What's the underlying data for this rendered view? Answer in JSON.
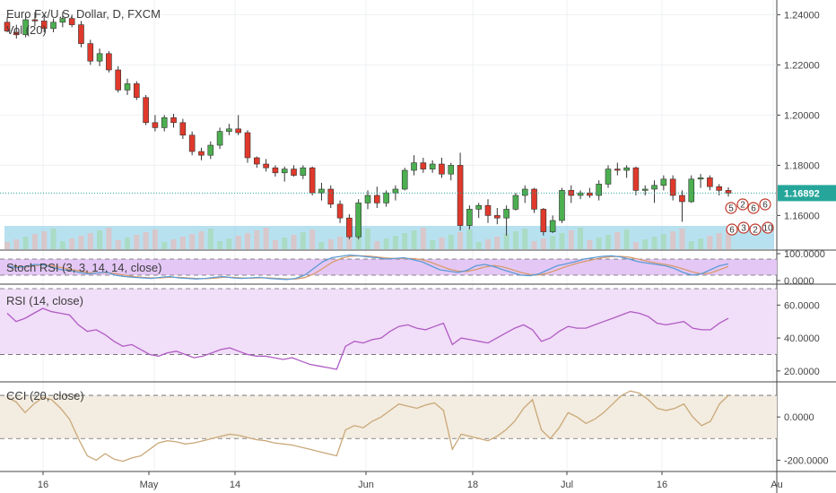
{
  "main": {
    "title": "Euro Fx/U.S. Dollar, D, FXCM",
    "volume_label": "Vol (20)",
    "last_price": "1.16892",
    "price_ticks": [
      "1.24000",
      "1.22000",
      "1.20000",
      "1.18000",
      "1.16000"
    ],
    "indicator_badges": [
      "5",
      "2",
      "6",
      "6",
      "6",
      "3",
      "2",
      "10"
    ]
  },
  "stoch": {
    "title": "Stoch RSI (3, 3, 14, 14, close)",
    "ticks": [
      "100.0000",
      "0.0000"
    ]
  },
  "rsi": {
    "title": "RSI (14, close)",
    "ticks": [
      "60.0000",
      "40.0000",
      "20.0000"
    ]
  },
  "cci": {
    "title": "CCI (20, close)",
    "ticks": [
      "0.0000",
      "-200.0000"
    ]
  },
  "time_axis": {
    "labels": [
      "16",
      "May",
      "14",
      "Jun",
      "18",
      "Jul",
      "16",
      "Au"
    ]
  },
  "colors": {
    "up": "#4caf50",
    "down": "#e0392b",
    "volume": "#7ec8e3",
    "price_line": "#26a69a",
    "stoch_bg": "#e4c7f5",
    "rsi_bg": "#f1def8",
    "rsi_line": "#b05bc4",
    "cci_bg": "#f3ece0",
    "cci_line": "#c9a878",
    "stoch_k": "#5b9bd5",
    "stoch_d": "#d99a6c"
  },
  "chart_data": [
    {
      "type": "candlestick",
      "title": "Euro Fx/U.S. Dollar, D, FXCM",
      "x_ticks": [
        "16",
        "May",
        "14",
        "Jun",
        "18",
        "Jul",
        "16",
        "Au"
      ],
      "ylim": [
        1.148,
        1.243
      ],
      "y_ticks": [
        1.24,
        1.22,
        1.2,
        1.18,
        1.16
      ],
      "last": 1.16892,
      "ohlc": [
        [
          1.237,
          1.239,
          1.233,
          1.2335
        ],
        [
          1.233,
          1.236,
          1.2305,
          1.232
        ],
        [
          1.232,
          1.2395,
          1.231,
          1.238
        ],
        [
          1.238,
          1.241,
          1.2355,
          1.2375
        ],
        [
          1.2375,
          1.24,
          1.233,
          1.2345
        ],
        [
          1.2345,
          1.2385,
          1.233,
          1.237
        ],
        [
          1.237,
          1.241,
          1.235,
          1.2385
        ],
        [
          1.2385,
          1.24,
          1.235,
          1.236
        ],
        [
          1.236,
          1.2375,
          1.227,
          1.2285
        ],
        [
          1.2285,
          1.23,
          1.22,
          1.2215
        ],
        [
          1.2215,
          1.2265,
          1.2195,
          1.2245
        ],
        [
          1.2245,
          1.2255,
          1.217,
          1.218
        ],
        [
          1.218,
          1.2195,
          1.209,
          1.21
        ],
        [
          1.21,
          1.2145,
          1.208,
          1.2125
        ],
        [
          1.2125,
          1.2135,
          1.206,
          1.207
        ],
        [
          1.207,
          1.208,
          1.196,
          1.197
        ],
        [
          1.197,
          1.2,
          1.1935,
          1.195
        ],
        [
          1.195,
          1.2,
          1.1935,
          1.199
        ],
        [
          1.199,
          1.2005,
          1.195,
          1.197
        ],
        [
          1.197,
          1.1985,
          1.1905,
          1.192
        ],
        [
          1.192,
          1.1935,
          1.184,
          1.1855
        ],
        [
          1.1855,
          1.187,
          1.182,
          1.184
        ],
        [
          1.184,
          1.1895,
          1.1825,
          1.188
        ],
        [
          1.188,
          1.195,
          1.1865,
          1.1935
        ],
        [
          1.1935,
          1.1965,
          1.192,
          1.1945
        ],
        [
          1.1945,
          1.2,
          1.192,
          1.193
        ],
        [
          1.193,
          1.194,
          1.181,
          1.183
        ],
        [
          1.183,
          1.1835,
          1.179,
          1.1805
        ],
        [
          1.1805,
          1.1825,
          1.1775,
          1.179
        ],
        [
          1.179,
          1.18,
          1.1755,
          1.177
        ],
        [
          1.177,
          1.1795,
          1.1735,
          1.1785
        ],
        [
          1.1785,
          1.18,
          1.1755,
          1.176
        ],
        [
          1.176,
          1.18,
          1.1745,
          1.179
        ],
        [
          1.179,
          1.1795,
          1.168,
          1.169
        ],
        [
          1.169,
          1.173,
          1.166,
          1.1705
        ],
        [
          1.1705,
          1.172,
          1.163,
          1.1645
        ],
        [
          1.1645,
          1.166,
          1.157,
          1.159
        ],
        [
          1.159,
          1.1605,
          1.1505,
          1.1515
        ],
        [
          1.1515,
          1.1665,
          1.1505,
          1.165
        ],
        [
          1.165,
          1.17,
          1.1625,
          1.168
        ],
        [
          1.168,
          1.1715,
          1.163,
          1.165
        ],
        [
          1.165,
          1.17,
          1.1635,
          1.169
        ],
        [
          1.169,
          1.172,
          1.166,
          1.1705
        ],
        [
          1.1705,
          1.179,
          1.17,
          1.178
        ],
        [
          1.178,
          1.184,
          1.176,
          1.181
        ],
        [
          1.181,
          1.183,
          1.177,
          1.1785
        ],
        [
          1.1785,
          1.182,
          1.177,
          1.1805
        ],
        [
          1.1805,
          1.183,
          1.175,
          1.1765
        ],
        [
          1.1765,
          1.181,
          1.174,
          1.18
        ],
        [
          1.18,
          1.185,
          1.154,
          1.156
        ],
        [
          1.156,
          1.164,
          1.1545,
          1.1625
        ],
        [
          1.1625,
          1.165,
          1.159,
          1.164
        ],
        [
          1.164,
          1.1665,
          1.157,
          1.16
        ],
        [
          1.16,
          1.163,
          1.1565,
          1.159
        ],
        [
          1.159,
          1.164,
          1.152,
          1.1625
        ],
        [
          1.1625,
          1.169,
          1.162,
          1.168
        ],
        [
          1.168,
          1.172,
          1.165,
          1.1705
        ],
        [
          1.1705,
          1.171,
          1.161,
          1.1625
        ],
        [
          1.1625,
          1.163,
          1.152,
          1.1535
        ],
        [
          1.1535,
          1.16,
          1.153,
          1.158
        ],
        [
          1.158,
          1.171,
          1.157,
          1.17
        ],
        [
          1.17,
          1.172,
          1.165,
          1.168
        ],
        [
          1.168,
          1.17,
          1.1665,
          1.169
        ],
        [
          1.169,
          1.171,
          1.167,
          1.168
        ],
        [
          1.168,
          1.174,
          1.166,
          1.1725
        ],
        [
          1.1725,
          1.18,
          1.171,
          1.1785
        ],
        [
          1.1785,
          1.181,
          1.176,
          1.178
        ],
        [
          1.178,
          1.18,
          1.175,
          1.179
        ],
        [
          1.179,
          1.1795,
          1.168,
          1.17
        ],
        [
          1.17,
          1.172,
          1.168,
          1.1705
        ],
        [
          1.1705,
          1.174,
          1.165,
          1.172
        ],
        [
          1.172,
          1.176,
          1.17,
          1.1745
        ],
        [
          1.1745,
          1.176,
          1.166,
          1.168
        ],
        [
          1.168,
          1.17,
          1.1575,
          1.1655
        ],
        [
          1.1655,
          1.176,
          1.165,
          1.1745
        ],
        [
          1.1745,
          1.1765,
          1.171,
          1.175
        ],
        [
          1.175,
          1.176,
          1.17,
          1.1715
        ],
        [
          1.1715,
          1.1725,
          1.168,
          1.17
        ],
        [
          1.17,
          1.1712,
          1.1675,
          1.1689
        ]
      ]
    },
    {
      "type": "line",
      "title": "Stoch RSI (3, 3, 14, 14, close)",
      "ylim": [
        -10,
        110
      ],
      "y_ticks": [
        100,
        0
      ],
      "bands": [
        80,
        20
      ],
      "series": [
        {
          "values": [
            55,
            48,
            52,
            60,
            58,
            50,
            40,
            38,
            30,
            25,
            28,
            32,
            20,
            15,
            12,
            10,
            8,
            12,
            15,
            10,
            8,
            6,
            8,
            12,
            15,
            10,
            8,
            10,
            12,
            8,
            6,
            4,
            8,
            20,
            45,
            70,
            85,
            90,
            95,
            92,
            88,
            85,
            80,
            82,
            85,
            78,
            70,
            55,
            40,
            35,
            30,
            38,
            55,
            60,
            52,
            40,
            30,
            20,
            18,
            25,
            40,
            55,
            62,
            70,
            80,
            85,
            90,
            92,
            88,
            80,
            70,
            65,
            60,
            55,
            45,
            30,
            20,
            25,
            40,
            55,
            62
          ]
        },
        {
          "values": [
            50,
            52,
            50,
            55,
            58,
            55,
            48,
            42,
            36,
            30,
            28,
            30,
            26,
            20,
            15,
            12,
            10,
            10,
            12,
            12,
            10,
            8,
            7,
            9,
            12,
            12,
            10,
            9,
            10,
            10,
            8,
            6,
            6,
            11,
            24,
            45,
            67,
            82,
            90,
            92,
            91,
            88,
            84,
            82,
            82,
            82,
            78,
            68,
            55,
            43,
            35,
            34,
            41,
            51,
            56,
            51,
            41,
            30,
            23,
            21,
            28,
            40,
            52,
            62,
            71,
            78,
            85,
            89,
            90,
            87,
            80,
            72,
            65,
            60,
            53,
            43,
            32,
            25,
            28,
            40,
            52
          ]
        }
      ]
    },
    {
      "type": "line",
      "title": "RSI (14, close)",
      "ylim": [
        15,
        70
      ],
      "y_ticks": [
        60,
        40,
        20
      ],
      "bands": [
        70,
        30
      ],
      "values": [
        55,
        50,
        52,
        55,
        58,
        56,
        55,
        54,
        48,
        44,
        45,
        42,
        38,
        35,
        36,
        33,
        30,
        29,
        31,
        32,
        30,
        28,
        29,
        31,
        33,
        34,
        32,
        30,
        29,
        29,
        28,
        27,
        28,
        26,
        24,
        23,
        22,
        21,
        35,
        38,
        37,
        39,
        40,
        44,
        47,
        48,
        46,
        45,
        47,
        49,
        36,
        40,
        39,
        38,
        37,
        40,
        43,
        46,
        48,
        45,
        38,
        40,
        44,
        47,
        46,
        46,
        48,
        50,
        52,
        54,
        56,
        55,
        53,
        49,
        48,
        49,
        50,
        46,
        45,
        45,
        49,
        52
      ]
    },
    {
      "type": "line",
      "title": "CCI (20, close)",
      "ylim": [
        -240,
        150
      ],
      "y_ticks": [
        0,
        -200
      ],
      "bands": [
        100,
        -100
      ],
      "values": [
        90,
        70,
        20,
        60,
        90,
        80,
        40,
        -10,
        -100,
        -180,
        -200,
        -170,
        -195,
        -205,
        -190,
        -180,
        -150,
        -120,
        -110,
        -115,
        -125,
        -120,
        -110,
        -100,
        -90,
        -80,
        -85,
        -95,
        -105,
        -110,
        -120,
        -125,
        -130,
        -140,
        -150,
        -160,
        -170,
        -180,
        -60,
        -40,
        -50,
        -20,
        0,
        30,
        60,
        50,
        40,
        55,
        65,
        30,
        -150,
        -80,
        -90,
        -100,
        -110,
        -90,
        -60,
        -20,
        40,
        80,
        -60,
        -100,
        -50,
        20,
        0,
        -30,
        -10,
        20,
        60,
        100,
        120,
        110,
        80,
        40,
        30,
        40,
        60,
        0,
        -40,
        -20,
        60,
        100
      ]
    }
  ]
}
